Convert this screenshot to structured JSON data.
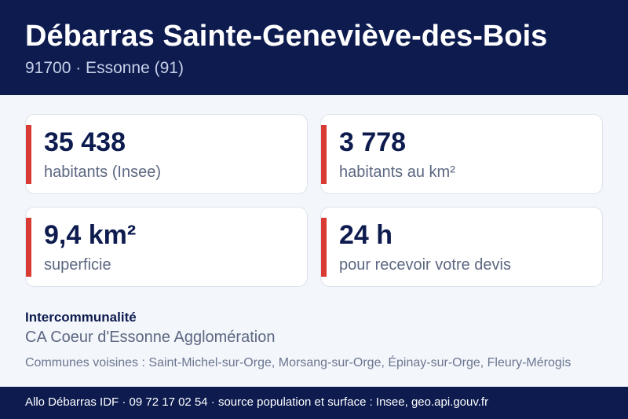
{
  "header": {
    "title": "Débarras Sainte-Geneviève-des-Bois",
    "subtitle": "91700 · Essonne (91)"
  },
  "stats": [
    {
      "value": "35 438",
      "label": "habitants (Insee)"
    },
    {
      "value": "3 778",
      "label": "habitants au km²"
    },
    {
      "value": "9,4 km²",
      "label": "superficie"
    },
    {
      "value": "24 h",
      "label": "pour recevoir votre devis"
    }
  ],
  "intercommunalite": {
    "title": "Intercommunalité",
    "value": "CA Coeur d'Essonne Agglomération"
  },
  "neighbors": "Communes voisines : Saint-Michel-sur-Orge, Morsang-sur-Orge, Épinay-sur-Orge, Fleury-Mérogis",
  "footer": "Allo Débarras IDF · 09 72 17 02 54 · source population et surface : Insee, geo.api.gouv.fr",
  "colors": {
    "navy": "#0d1b4f",
    "accent": "#d93a33",
    "background": "#f3f6fb"
  }
}
